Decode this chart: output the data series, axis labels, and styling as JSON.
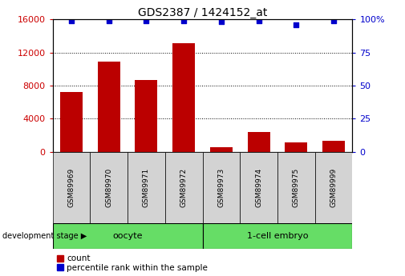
{
  "title": "GDS2387 / 1424152_at",
  "samples": [
    "GSM89969",
    "GSM89970",
    "GSM89971",
    "GSM89972",
    "GSM89973",
    "GSM89974",
    "GSM89975",
    "GSM89999"
  ],
  "counts": [
    7200,
    10900,
    8700,
    13100,
    600,
    2350,
    1150,
    1350
  ],
  "percentile_ranks": [
    99,
    99,
    99,
    99,
    98,
    99,
    96,
    99
  ],
  "bar_color": "#bb0000",
  "dot_color": "#0000cc",
  "ylim_left": [
    0,
    16000
  ],
  "ylim_right": [
    0,
    100
  ],
  "yticks_left": [
    0,
    4000,
    8000,
    12000,
    16000
  ],
  "yticks_right": [
    0,
    25,
    50,
    75,
    100
  ],
  "grid_values": [
    4000,
    8000,
    12000
  ],
  "background_color": "#ffffff",
  "tick_label_color_left": "#cc0000",
  "tick_label_color_right": "#0000cc",
  "sample_box_color": "#d3d3d3",
  "green_color": "#66dd66",
  "legend_count_label": "count",
  "legend_pct_label": "percentile rank within the sample",
  "dev_stage_label": "development stage",
  "groups": [
    {
      "label": "oocyte",
      "start": 0,
      "end": 3
    },
    {
      "label": "1-cell embryo",
      "start": 4,
      "end": 7
    }
  ]
}
